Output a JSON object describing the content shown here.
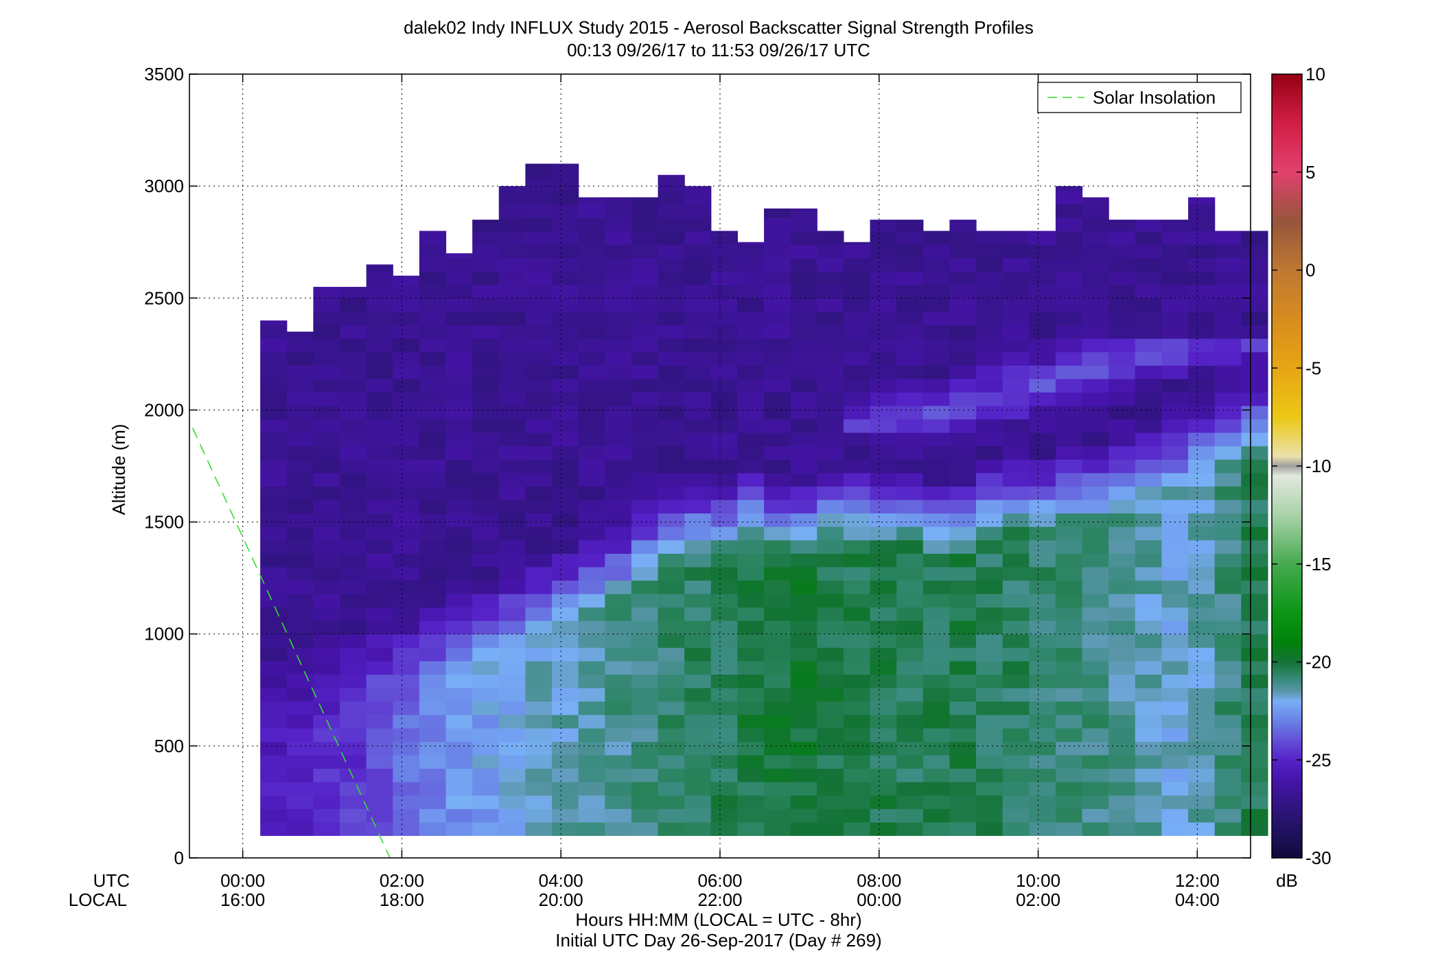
{
  "chart_data": {
    "type": "heatmap",
    "title": "dalek02 Indy INFLUX Study 2015 - Aerosol Backscatter Signal Strength Profiles",
    "subtitle": "00:13 09/26/17 to 11:53 09/26/17  UTC",
    "ylabel": "Altitude (m)",
    "xlabel": "Hours HH:MM  (LOCAL = UTC - 8hr)",
    "xlabel2": "Initial UTC Day 26-Sep-2017 (Day # 269)",
    "x_row_label_utc": "UTC",
    "x_row_label_local": "LOCAL",
    "xlim_hours": [
      -0.67,
      12.67
    ],
    "ylim": [
      0,
      3500
    ],
    "grid": true,
    "x_ticks_hours": [
      0,
      2,
      4,
      6,
      8,
      10,
      12
    ],
    "x_tick_labels_utc": [
      "00:00",
      "02:00",
      "04:00",
      "06:00",
      "08:00",
      "10:00",
      "12:00"
    ],
    "x_tick_labels_local": [
      "16:00",
      "18:00",
      "20:00",
      "22:00",
      "00:00",
      "02:00",
      "04:00"
    ],
    "y_ticks": [
      0,
      500,
      1000,
      1500,
      2000,
      2500,
      3000,
      3500
    ],
    "y_tick_labels": [
      "0",
      "500",
      "1000",
      "1500",
      "2000",
      "2500",
      "3000",
      "3500"
    ],
    "legend": {
      "entries": [
        "Solar Insolation"
      ],
      "placement": "top-right",
      "line_color": "#33dd33"
    },
    "solar_insolation_line": {
      "x_hours": [
        -0.63,
        1.85
      ],
      "y": [
        1920,
        0
      ]
    },
    "colorbar": {
      "unit": "dB",
      "range": [
        -30,
        10
      ],
      "ticks": [
        10,
        5,
        0,
        -5,
        -10,
        -15,
        -20,
        -25,
        -30
      ],
      "tick_labels": [
        "10",
        "5",
        "0",
        "-5",
        "-10",
        "-15",
        "-20",
        "-25",
        "-30"
      ]
    },
    "profile_start_hours": 0.22,
    "profile_step_hours": 0.3333,
    "altitude_start_m": 100,
    "altitude_step_m": 60,
    "profile_top_altitudes_m": [
      2400,
      2350,
      2550,
      2550,
      2650,
      2600,
      2800,
      2700,
      2850,
      3000,
      3100,
      3100,
      2950,
      2950,
      2950,
      3050,
      3000,
      2800,
      2750,
      2900,
      2900,
      2800,
      2750,
      2850,
      2850,
      2800,
      2850,
      2800,
      2800,
      2800,
      3000,
      2950,
      2850,
      2850,
      2850,
      2950,
      2800,
      2800
    ],
    "boundary_layer_top_m": [
      700,
      750,
      780,
      820,
      880,
      900,
      950,
      1000,
      1050,
      1100,
      1150,
      1200,
      1250,
      1300,
      1400,
      1450,
      1500,
      1500,
      1550,
      1500,
      1500,
      1550,
      1550,
      1550,
      1550,
      1500,
      1500,
      1600,
      1600,
      1600,
      1650,
      1650,
      1700,
      1750,
      1800,
      1850,
      1900,
      1950
    ],
    "aerosol_layer_core_dB": [
      -25.5,
      -25.3,
      -24.9,
      -24.6,
      -24,
      -23.5,
      -23,
      -22.6,
      -22.3,
      -22,
      -21.8,
      -21.6,
      -21.4,
      -21.2,
      -21,
      -20.8,
      -20.6,
      -20.4,
      -20.2,
      -20,
      -20,
      -20.2,
      -20.3,
      -20.3,
      -20.5,
      -20.4,
      -20.3,
      -20.5,
      -20.6,
      -20.8,
      -20.9,
      -21,
      -21.2,
      -21.5,
      -21.8,
      -21.6,
      -20.9,
      -20.4
    ],
    "free_troposphere_dB": -26.8,
    "upper_layer": {
      "start_hours": 7.5,
      "altitude_start_m": 1850,
      "altitude_end_m": 2300,
      "value_dB": -24
    }
  }
}
